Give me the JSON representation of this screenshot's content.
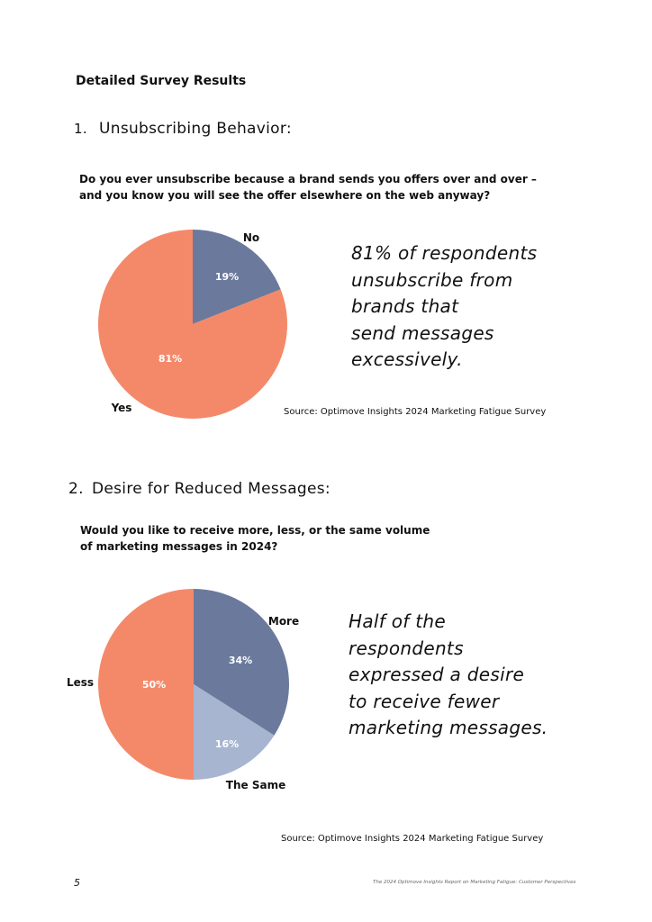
{
  "page": {
    "heading": "Detailed Survey Results",
    "page_number": "5",
    "footer_title": "The 2024 Optimove Insights Report on Marketing Fatigue: Customer Perspectives"
  },
  "section1": {
    "number": "1.",
    "title": "Unsubscribing Behavior:",
    "question_lines": [
      "Do you ever unsubscribe because a brand sends you offers over and over –",
      "and you know you will see the offer elsewhere on the web anyway?"
    ],
    "callout_lines": [
      "81% of respondents",
      "unsubscribe from",
      "brands that",
      "send messages",
      "excessively."
    ],
    "source": "Source: Optimove Insights 2024 Marketing Fatigue Survey"
  },
  "section2": {
    "number": "2.",
    "title": "Desire for Reduced Messages:",
    "question_lines": [
      "Would you like to receive more, less, or the same volume",
      "of marketing messages in 2024?"
    ],
    "callout_lines": [
      "Half of the",
      "respondents",
      "expressed a desire",
      "to receive fewer",
      "marketing messages."
    ],
    "source": "Source: Optimove Insights 2024 Marketing Fatigue Survey"
  },
  "chart_data": [
    {
      "type": "pie",
      "start": "12 o'clock, clockwise",
      "slices": [
        {
          "label": "No",
          "value": 19,
          "value_label": "19%",
          "color": "#6b7a9c"
        },
        {
          "label": "Yes",
          "value": 81,
          "value_label": "81%",
          "color": "#f4896a"
        }
      ]
    },
    {
      "type": "pie",
      "start": "12 o'clock, clockwise",
      "slices": [
        {
          "label": "More",
          "value": 34,
          "value_label": "34%",
          "color": "#6b7a9c"
        },
        {
          "label": "The Same",
          "value": 16,
          "value_label": "16%",
          "color": "#a7b5d1"
        },
        {
          "label": "Less",
          "value": 50,
          "value_label": "50%",
          "color": "#f4896a"
        }
      ]
    }
  ]
}
